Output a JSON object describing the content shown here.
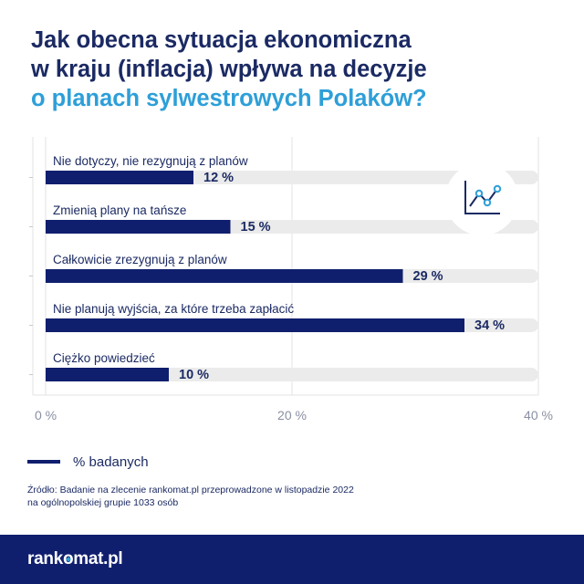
{
  "title": {
    "line1": "Jak obecna sytuacja ekonomiczna",
    "line2": "w kraju (inflacja) wpływa na decyzje",
    "line3": "o planach sylwestrowych Polaków?"
  },
  "chart_data": {
    "type": "bar",
    "orientation": "horizontal",
    "categories": [
      "Nie dotyczy, nie rezygnują z planów",
      "Zmienią plany na tańsze",
      "Całkowicie zrezygnują z planów",
      "Nie planują wyjścia, za które trzeba zapłacić",
      "Ciężko powiedzieć"
    ],
    "series": [
      {
        "name": "% badanych",
        "values": [
          12,
          15,
          29,
          34,
          10
        ]
      }
    ],
    "value_labels": [
      "12 %",
      "15 %",
      "29 %",
      "34 %",
      "10 %"
    ],
    "xlim": [
      0,
      40
    ],
    "x_ticks": [
      0,
      20,
      40
    ],
    "x_tick_labels": [
      "0 %",
      "20 %",
      "40 %"
    ],
    "grid": true,
    "legend_position": "bottom-left",
    "colors": {
      "bar": "#0f1f6e",
      "track": "#ebebeb",
      "grid": "#e3e3e3",
      "accent": "#2e9fd8"
    },
    "icon": "line-chart-icon"
  },
  "legend": {
    "label": "% badanych"
  },
  "source": {
    "line1": "Źródło: Badanie na zlecenie rankomat.pl przeprowadzone w listopadzie 2022",
    "line2": "na ogólnopolskiej grupie 1033 osób"
  },
  "footer": {
    "brand_before": "rank",
    "brand_o": "o",
    "brand_after": "mat.pl"
  }
}
